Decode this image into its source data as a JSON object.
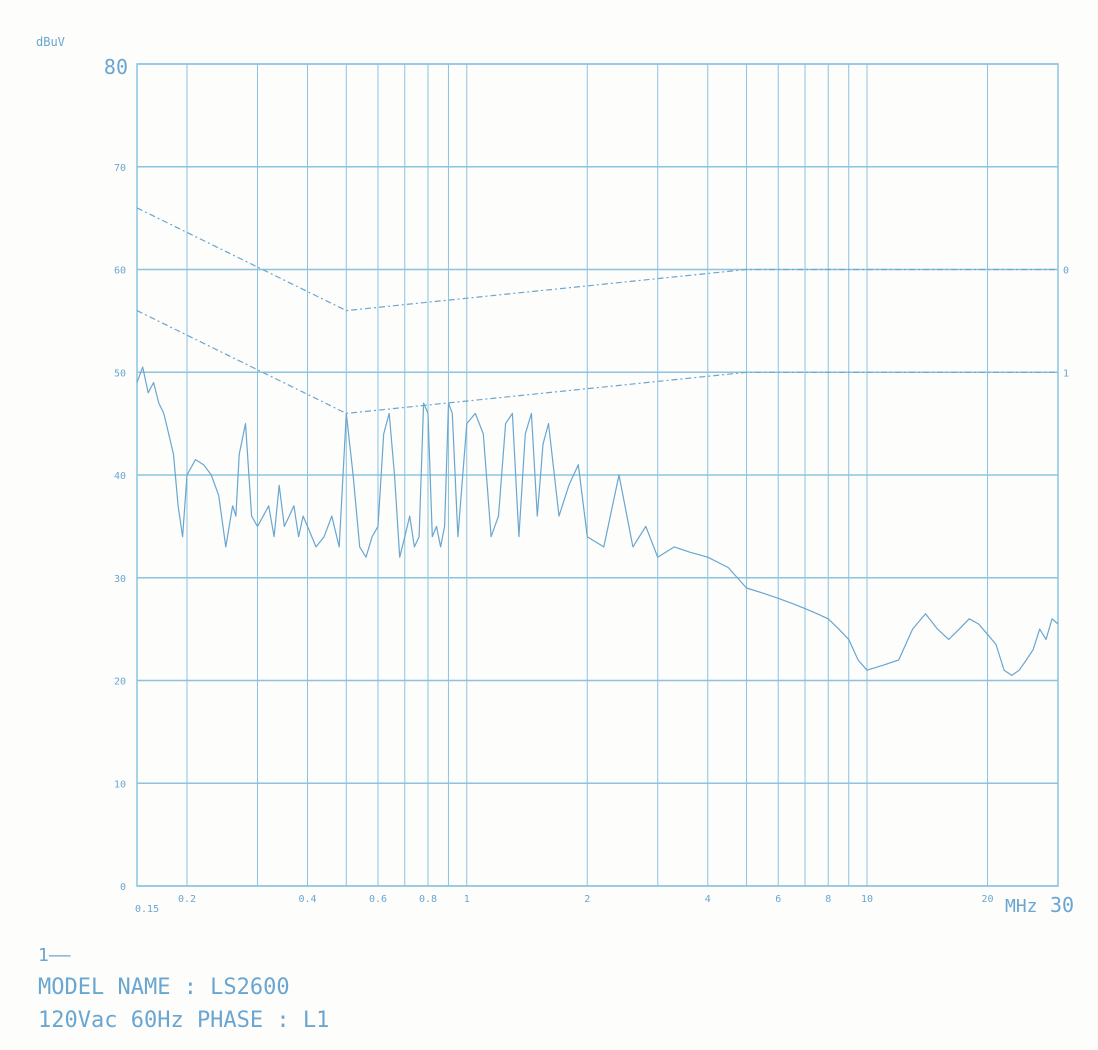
{
  "chart_data": {
    "type": "line",
    "title": "",
    "xlabel": "MHz",
    "ylabel": "dBuV",
    "x_scale": "log",
    "xlim": [
      0.15,
      30
    ],
    "ylim": [
      0,
      80
    ],
    "grid": true,
    "y_ticks": [
      0,
      10,
      20,
      30,
      40,
      50,
      60,
      70,
      80
    ],
    "y_tick_labels": [
      "0",
      "10",
      "20",
      "30",
      "40",
      "50",
      "60",
      "70",
      "80"
    ],
    "x_ticks": [
      0.15,
      0.2,
      0.4,
      0.6,
      0.8,
      1,
      2,
      4,
      6,
      8,
      10,
      20,
      30
    ],
    "x_tick_labels": [
      "0.15",
      "0.2",
      "0.4",
      "0.6",
      "0.8",
      "1",
      "2",
      "4",
      "6",
      "8",
      "10",
      "20",
      "30"
    ],
    "limit_lines": [
      {
        "label": "0",
        "x": [
          0.15,
          0.5,
          5,
          30
        ],
        "y": [
          66,
          56,
          60,
          60
        ]
      },
      {
        "label": "1",
        "x": [
          0.15,
          0.5,
          5,
          30
        ],
        "y": [
          56,
          46,
          50,
          50
        ]
      }
    ],
    "series": [
      {
        "x": [
          0.15,
          0.155,
          0.16,
          0.165,
          0.17,
          0.175,
          0.18,
          0.185,
          0.19,
          0.195,
          0.2,
          0.21,
          0.22,
          0.23,
          0.24,
          0.25,
          0.26,
          0.265,
          0.27,
          0.28,
          0.29,
          0.3,
          0.31,
          0.32,
          0.33,
          0.34,
          0.35,
          0.36,
          0.37,
          0.38,
          0.39,
          0.4,
          0.42,
          0.44,
          0.46,
          0.48,
          0.5,
          0.52,
          0.54,
          0.56,
          0.58,
          0.6,
          0.62,
          0.64,
          0.66,
          0.68,
          0.7,
          0.72,
          0.74,
          0.76,
          0.78,
          0.8,
          0.82,
          0.84,
          0.86,
          0.88,
          0.9,
          0.92,
          0.95,
          1.0,
          1.05,
          1.1,
          1.15,
          1.2,
          1.25,
          1.3,
          1.35,
          1.4,
          1.45,
          1.5,
          1.55,
          1.6,
          1.7,
          1.8,
          1.9,
          2.0,
          2.2,
          2.4,
          2.6,
          2.8,
          3.0,
          3.3,
          3.6,
          4.0,
          4.5,
          5.0,
          5.5,
          6.0,
          6.5,
          7.0,
          7.5,
          8.0,
          8.5,
          9.0,
          9.5,
          10,
          11,
          12,
          13,
          14,
          15,
          16,
          17,
          18,
          19,
          20,
          21,
          22,
          23,
          24,
          25,
          26,
          27,
          28,
          29,
          30
        ],
        "values": [
          49,
          50.5,
          48,
          49,
          47,
          46,
          44,
          42,
          37,
          34,
          40,
          41.5,
          41,
          40,
          38,
          33,
          37,
          36,
          42,
          45,
          36,
          35,
          36,
          37,
          34,
          39,
          35,
          36,
          37,
          34,
          36,
          35,
          33,
          34,
          36,
          33,
          46,
          40,
          33,
          32,
          34,
          35,
          44,
          46,
          40,
          32,
          34,
          36,
          33,
          34,
          47,
          46,
          34,
          35,
          33,
          35,
          47,
          46,
          34,
          45,
          46,
          44,
          34,
          36,
          45,
          46,
          34,
          44,
          46,
          36,
          43,
          45,
          36,
          39,
          41,
          34,
          33,
          40,
          33,
          35,
          32,
          33,
          32.5,
          32,
          31,
          29,
          28.5,
          28,
          27.5,
          27,
          26.5,
          26,
          25,
          24,
          22,
          21,
          21.5,
          22,
          25,
          26.5,
          25,
          24,
          25,
          26,
          25.5,
          24.5,
          23.5,
          21,
          20.5,
          21,
          22,
          23,
          25,
          24,
          26,
          25.5
        ]
      }
    ]
  },
  "chart": {
    "ylabel_text": "dBuV",
    "xunit_text": "MHz",
    "line_color": "#6aa6d0",
    "grid_color": "#8cc4df"
  },
  "footer": {
    "marker": "1—–",
    "model": "MODEL NAME : LS2600",
    "conditions": "120Vac 60Hz PHASE : L1"
  }
}
